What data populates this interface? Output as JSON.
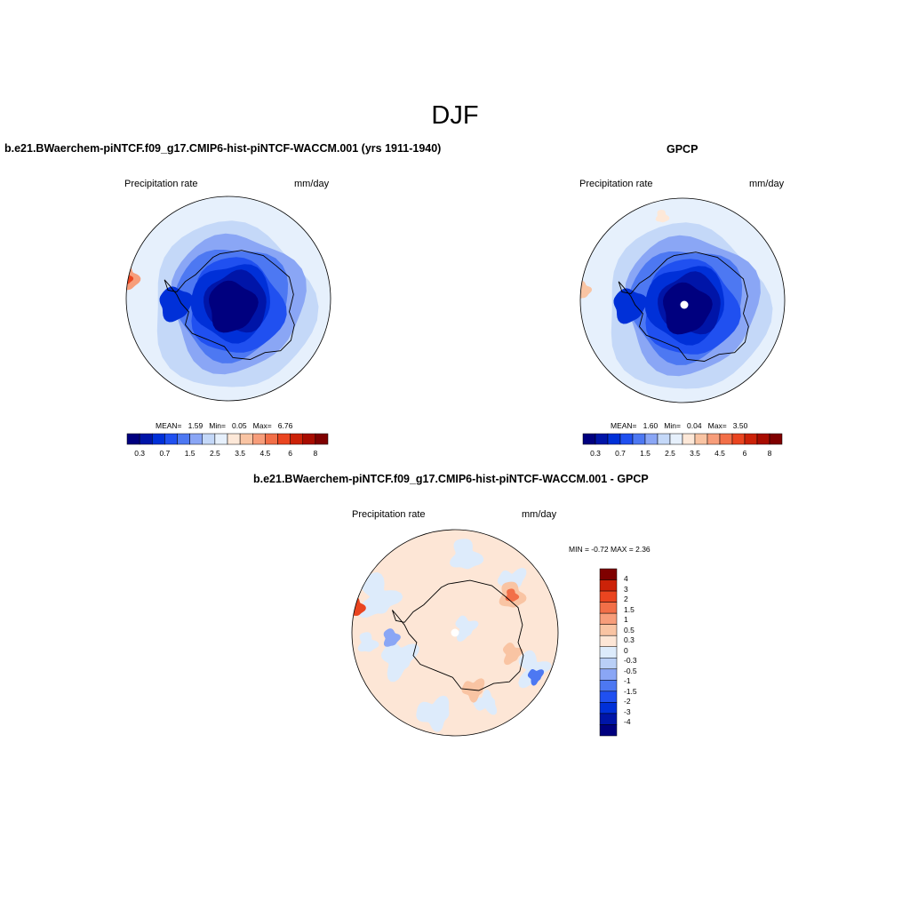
{
  "figure_title": "DJF",
  "colors": {
    "seq": [
      "#00007f",
      "#0015a8",
      "#0030d8",
      "#2050f0",
      "#4d78f2",
      "#8aa6f5",
      "#c4d8f8",
      "#e6f0fc",
      "#fde8d8",
      "#f9c4a3",
      "#f79d7a",
      "#f26f48",
      "#ea4520",
      "#cc2208",
      "#a80c00",
      "#7f0000"
    ],
    "div": [
      "#00007f",
      "#0015a8",
      "#0030d8",
      "#2050f0",
      "#4d78f2",
      "#8aa6f5",
      "#b9cff6",
      "#ddebfb",
      "#fde6d6",
      "#f9c4a3",
      "#f79d7a",
      "#f26f48",
      "#ea4520",
      "#cc2208",
      "#7f0000"
    ],
    "coast": "#000000"
  },
  "chart_data": [
    {
      "type": "heatmap",
      "projection": "south-polar-stereographic",
      "title": "b.e21.BWaerchem-piNTCF.f09_g17.CMIP6-hist-piNTCF-WACCM.001 (yrs 1911-1940)",
      "left_label": "Precipitation rate",
      "right_label": "mm/day",
      "stats": {
        "mean_label": "MEAN=",
        "mean": "1.59",
        "min_label": "Min=",
        "min": "0.05",
        "max_label": "Max=",
        "max": "6.76"
      },
      "colorbar": {
        "orientation": "horizontal",
        "levels": [
          0.2,
          0.3,
          0.5,
          0.7,
          1,
          1.5,
          2,
          2.5,
          3,
          3.5,
          4,
          4.5,
          5,
          6,
          7,
          8
        ],
        "tick_labels": [
          "0.3",
          "0.7",
          "1.5",
          "2.5",
          "3.5",
          "4.5",
          "6",
          "8"
        ]
      }
    },
    {
      "type": "heatmap",
      "projection": "south-polar-stereographic",
      "title": "GPCP",
      "left_label": "Precipitation rate",
      "right_label": "mm/day",
      "stats": {
        "mean_label": "MEAN=",
        "mean": "1.60",
        "min_label": "Min=",
        "min": "0.04",
        "max_label": "Max=",
        "max": "3.50"
      },
      "colorbar": {
        "orientation": "horizontal",
        "levels": [
          0.2,
          0.3,
          0.5,
          0.7,
          1,
          1.5,
          2,
          2.5,
          3,
          3.5,
          4,
          4.5,
          5,
          6,
          7,
          8
        ],
        "tick_labels": [
          "0.3",
          "0.7",
          "1.5",
          "2.5",
          "3.5",
          "4.5",
          "6",
          "8"
        ]
      }
    },
    {
      "type": "heatmap",
      "projection": "south-polar-stereographic",
      "title": "b.e21.BWaerchem-piNTCF.f09_g17.CMIP6-hist-piNTCF-WACCM.001 - GPCP",
      "left_label": "Precipitation rate",
      "right_label": "mm/day",
      "stats_text": "MIN =  -0.72 MAX =   2.36",
      "colorbar": {
        "orientation": "vertical",
        "levels": [
          4,
          3,
          2,
          1.5,
          1,
          0.5,
          0.3,
          0,
          -0.3,
          -0.5,
          -1,
          -1.5,
          -2,
          -3,
          -4
        ],
        "tick_labels": [
          "4",
          "3",
          "2",
          "1.5",
          "1",
          "0.5",
          "0.3",
          "0",
          "-0.3",
          "-0.5",
          "-1",
          "-1.5",
          "-2",
          "-3",
          "-4"
        ]
      }
    }
  ]
}
